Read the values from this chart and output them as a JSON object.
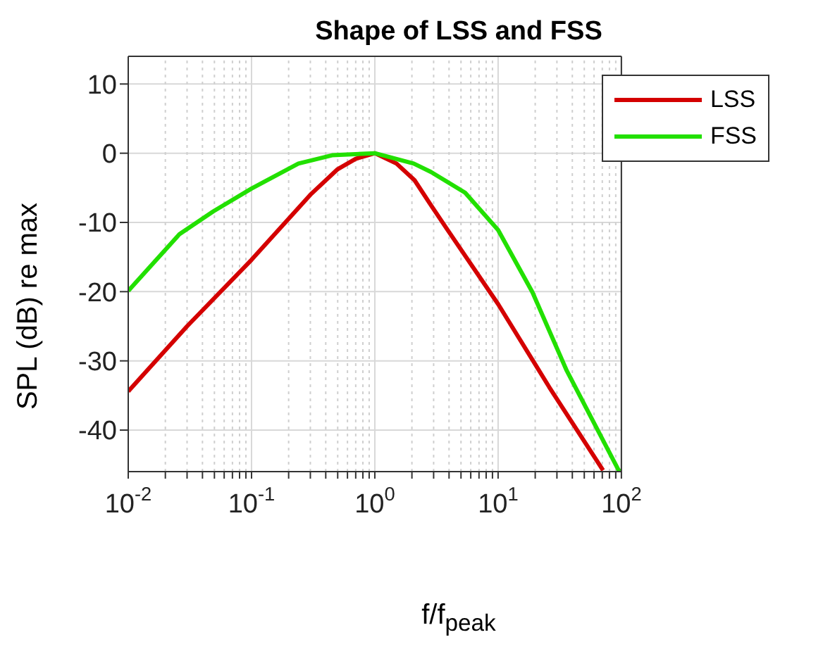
{
  "chart_data": {
    "type": "line",
    "title": "Shape of LSS and FSS",
    "xlabel": "f/f$_{peak}$",
    "ylabel": "SPL (dB) re max",
    "log": "x",
    "grid": true,
    "legend": "top right",
    "line_style": "solid",
    "marker": "none",
    "xlim": [
      0.01,
      100
    ],
    "ylim": [
      -46,
      14
    ],
    "xticks": [
      {
        "value": 0.01,
        "label": "10$^{-2}$"
      },
      {
        "value": 0.02,
        "label": null
      },
      {
        "value": 0.03,
        "label": null
      },
      {
        "value": 0.04,
        "label": null
      },
      {
        "value": 0.05,
        "label": null
      },
      {
        "value": 0.06,
        "label": null
      },
      {
        "value": 0.07,
        "label": null
      },
      {
        "value": 0.08,
        "label": null
      },
      {
        "value": 0.09,
        "label": null
      },
      {
        "value": 0.1,
        "label": "10$^{-1}$"
      },
      {
        "value": 0.2,
        "label": null
      },
      {
        "value": 0.3,
        "label": null
      },
      {
        "value": 0.4,
        "label": null
      },
      {
        "value": 0.5,
        "label": null
      },
      {
        "value": 0.6,
        "label": null
      },
      {
        "value": 0.7,
        "label": null
      },
      {
        "value": 0.8,
        "label": null
      },
      {
        "value": 0.9,
        "label": null
      },
      {
        "value": 1,
        "label": "10$^{0}$"
      },
      {
        "value": 2,
        "label": null
      },
      {
        "value": 3,
        "label": null
      },
      {
        "value": 4,
        "label": null
      },
      {
        "value": 5,
        "label": null
      },
      {
        "value": 6,
        "label": null
      },
      {
        "value": 7,
        "label": null
      },
      {
        "value": 8,
        "label": null
      },
      {
        "value": 9,
        "label": null
      },
      {
        "value": 10,
        "label": "10$^{1}$"
      },
      {
        "value": 20,
        "label": null
      },
      {
        "value": 30,
        "label": null
      },
      {
        "value": 40,
        "label": null
      },
      {
        "value": 50,
        "label": null
      },
      {
        "value": 60,
        "label": null
      },
      {
        "value": 70,
        "label": null
      },
      {
        "value": 80,
        "label": null
      },
      {
        "value": 90,
        "label": null
      },
      {
        "value": 100,
        "label": "10$^{2}$"
      }
    ],
    "yticks": [
      -40,
      -30,
      -20,
      -10,
      0,
      10
    ],
    "series": [
      {
        "name": "LSS",
        "color": "#d40000",
        "x": [
          0.01,
          0.03,
          0.1,
          0.3,
          0.5,
          0.7,
          1,
          1.5,
          2.1,
          2.85,
          3.9,
          10,
          26,
          71
        ],
        "values": [
          -34.4,
          -25,
          -15.4,
          -6,
          -2.3,
          -0.8,
          0,
          -1.5,
          -3.9,
          -7.5,
          -11.1,
          -21.8,
          -33.8,
          -45.8
        ]
      },
      {
        "name": "FSS",
        "color": "#22e000",
        "x": [
          0.01,
          0.026,
          0.049,
          0.1,
          0.24,
          0.45,
          1,
          2.07,
          2.85,
          5.4,
          10,
          19,
          36,
          95,
          100
        ],
        "values": [
          -19.9,
          -11.7,
          -8.4,
          -5.1,
          -1.5,
          -0.3,
          0,
          -1.5,
          -2.7,
          -5.7,
          -11.1,
          -20.1,
          -31.4,
          -45.8,
          -46
        ]
      }
    ]
  }
}
